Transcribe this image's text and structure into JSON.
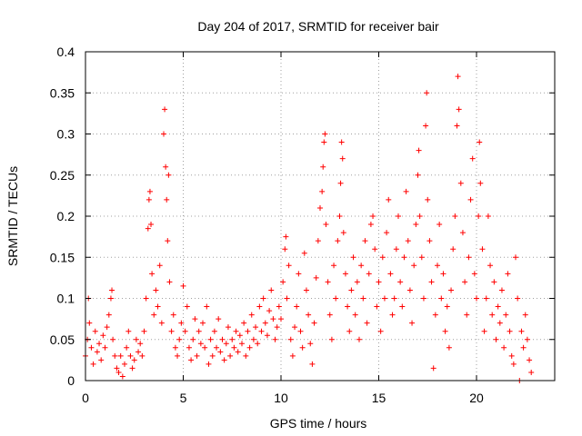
{
  "chart_data": {
    "type": "scatter",
    "title": "Day 204 of 2017, SRMTID for receiver bair",
    "xlabel": "GPS time / hours",
    "ylabel": "SRMTID / TECUs",
    "xlim": [
      0,
      24
    ],
    "ylim": [
      0,
      0.4
    ],
    "x_ticks": [
      0,
      5,
      10,
      15,
      20
    ],
    "x_tick_labels": [
      "0",
      "5",
      "10",
      "15",
      "20"
    ],
    "y_ticks": [
      0,
      0.05,
      0.1,
      0.15,
      0.2,
      0.25,
      0.3,
      0.35,
      0.4
    ],
    "y_tick_labels": [
      "0",
      "0.05",
      "0.1",
      "0.15",
      "0.2",
      "0.25",
      "0.3",
      "0.35",
      "0.4"
    ],
    "grid": true,
    "marker": "+",
    "color": "#ff0000",
    "series": [
      {
        "name": "SRMTID",
        "points": [
          [
            0.0,
            0.03
          ],
          [
            0.1,
            0.05
          ],
          [
            0.15,
            0.1
          ],
          [
            0.2,
            0.07
          ],
          [
            0.3,
            0.04
          ],
          [
            0.4,
            0.02
          ],
          [
            0.5,
            0.06
          ],
          [
            0.6,
            0.035
          ],
          [
            0.7,
            0.045
          ],
          [
            0.8,
            0.025
          ],
          [
            0.9,
            0.055
          ],
          [
            1.0,
            0.04
          ],
          [
            1.1,
            0.065
          ],
          [
            1.2,
            0.08
          ],
          [
            1.3,
            0.1
          ],
          [
            1.35,
            0.11
          ],
          [
            1.4,
            0.05
          ],
          [
            1.5,
            0.03
          ],
          [
            1.6,
            0.015
          ],
          [
            1.7,
            0.01
          ],
          [
            1.8,
            0.03
          ],
          [
            1.9,
            0.005
          ],
          [
            2.0,
            0.02
          ],
          [
            2.1,
            0.04
          ],
          [
            2.2,
            0.06
          ],
          [
            2.3,
            0.03
          ],
          [
            2.4,
            0.015
          ],
          [
            2.5,
            0.025
          ],
          [
            2.6,
            0.05
          ],
          [
            2.7,
            0.035
          ],
          [
            2.8,
            0.045
          ],
          [
            2.9,
            0.03
          ],
          [
            3.0,
            0.06
          ],
          [
            3.1,
            0.1
          ],
          [
            3.2,
            0.185
          ],
          [
            3.25,
            0.22
          ],
          [
            3.3,
            0.23
          ],
          [
            3.35,
            0.19
          ],
          [
            3.4,
            0.13
          ],
          [
            3.5,
            0.08
          ],
          [
            3.6,
            0.11
          ],
          [
            3.7,
            0.09
          ],
          [
            3.8,
            0.14
          ],
          [
            3.9,
            0.07
          ],
          [
            4.0,
            0.3
          ],
          [
            4.05,
            0.33
          ],
          [
            4.1,
            0.26
          ],
          [
            4.15,
            0.22
          ],
          [
            4.2,
            0.17
          ],
          [
            4.25,
            0.25
          ],
          [
            4.3,
            0.12
          ],
          [
            4.4,
            0.06
          ],
          [
            4.5,
            0.08
          ],
          [
            4.6,
            0.04
          ],
          [
            4.7,
            0.03
          ],
          [
            4.8,
            0.05
          ],
          [
            4.9,
            0.07
          ],
          [
            5.0,
            0.115
          ],
          [
            5.1,
            0.06
          ],
          [
            5.2,
            0.09
          ],
          [
            5.3,
            0.04
          ],
          [
            5.4,
            0.025
          ],
          [
            5.5,
            0.05
          ],
          [
            5.6,
            0.075
          ],
          [
            5.7,
            0.03
          ],
          [
            5.8,
            0.06
          ],
          [
            5.9,
            0.045
          ],
          [
            6.0,
            0.07
          ],
          [
            6.1,
            0.04
          ],
          [
            6.2,
            0.09
          ],
          [
            6.3,
            0.02
          ],
          [
            6.4,
            0.05
          ],
          [
            6.5,
            0.03
          ],
          [
            6.6,
            0.06
          ],
          [
            6.7,
            0.04
          ],
          [
            6.8,
            0.075
          ],
          [
            6.9,
            0.035
          ],
          [
            7.0,
            0.05
          ],
          [
            7.1,
            0.025
          ],
          [
            7.2,
            0.045
          ],
          [
            7.3,
            0.065
          ],
          [
            7.4,
            0.03
          ],
          [
            7.5,
            0.05
          ],
          [
            7.6,
            0.04
          ],
          [
            7.7,
            0.06
          ],
          [
            7.8,
            0.035
          ],
          [
            7.9,
            0.055
          ],
          [
            8.0,
            0.045
          ],
          [
            8.1,
            0.07
          ],
          [
            8.2,
            0.03
          ],
          [
            8.3,
            0.06
          ],
          [
            8.4,
            0.04
          ],
          [
            8.5,
            0.08
          ],
          [
            8.6,
            0.05
          ],
          [
            8.7,
            0.065
          ],
          [
            8.8,
            0.045
          ],
          [
            8.9,
            0.09
          ],
          [
            9.0,
            0.06
          ],
          [
            9.1,
            0.1
          ],
          [
            9.2,
            0.07
          ],
          [
            9.3,
            0.055
          ],
          [
            9.4,
            0.085
          ],
          [
            9.5,
            0.11
          ],
          [
            9.6,
            0.075
          ],
          [
            9.7,
            0.05
          ],
          [
            9.8,
            0.065
          ],
          [
            9.9,
            0.09
          ],
          [
            10.0,
            0.075
          ],
          [
            10.1,
            0.12
          ],
          [
            10.2,
            0.16
          ],
          [
            10.25,
            0.175
          ],
          [
            10.3,
            0.1
          ],
          [
            10.4,
            0.14
          ],
          [
            10.5,
            0.05
          ],
          [
            10.6,
            0.03
          ],
          [
            10.7,
            0.065
          ],
          [
            10.8,
            0.09
          ],
          [
            10.9,
            0.13
          ],
          [
            11.0,
            0.06
          ],
          [
            11.1,
            0.04
          ],
          [
            11.2,
            0.155
          ],
          [
            11.3,
            0.11
          ],
          [
            11.4,
            0.08
          ],
          [
            11.5,
            0.045
          ],
          [
            11.6,
            0.02
          ],
          [
            11.7,
            0.07
          ],
          [
            11.8,
            0.125
          ],
          [
            11.9,
            0.17
          ],
          [
            12.0,
            0.21
          ],
          [
            12.1,
            0.23
          ],
          [
            12.15,
            0.26
          ],
          [
            12.2,
            0.29
          ],
          [
            12.25,
            0.3
          ],
          [
            12.3,
            0.19
          ],
          [
            12.4,
            0.12
          ],
          [
            12.5,
            0.08
          ],
          [
            12.6,
            0.05
          ],
          [
            12.7,
            0.14
          ],
          [
            12.8,
            0.1
          ],
          [
            12.9,
            0.17
          ],
          [
            13.0,
            0.2
          ],
          [
            13.05,
            0.24
          ],
          [
            13.1,
            0.29
          ],
          [
            13.15,
            0.27
          ],
          [
            13.2,
            0.18
          ],
          [
            13.3,
            0.13
          ],
          [
            13.4,
            0.09
          ],
          [
            13.5,
            0.06
          ],
          [
            13.6,
            0.11
          ],
          [
            13.7,
            0.15
          ],
          [
            13.8,
            0.08
          ],
          [
            13.9,
            0.12
          ],
          [
            14.0,
            0.05
          ],
          [
            14.1,
            0.14
          ],
          [
            14.2,
            0.1
          ],
          [
            14.3,
            0.17
          ],
          [
            14.4,
            0.07
          ],
          [
            14.5,
            0.13
          ],
          [
            14.6,
            0.19
          ],
          [
            14.7,
            0.2
          ],
          [
            14.8,
            0.16
          ],
          [
            14.9,
            0.09
          ],
          [
            15.0,
            0.12
          ],
          [
            15.1,
            0.06
          ],
          [
            15.2,
            0.15
          ],
          [
            15.3,
            0.1
          ],
          [
            15.4,
            0.18
          ],
          [
            15.5,
            0.22
          ],
          [
            15.6,
            0.13
          ],
          [
            15.7,
            0.08
          ],
          [
            15.8,
            0.1
          ],
          [
            15.9,
            0.16
          ],
          [
            16.0,
            0.2
          ],
          [
            16.1,
            0.12
          ],
          [
            16.2,
            0.09
          ],
          [
            16.3,
            0.15
          ],
          [
            16.4,
            0.23
          ],
          [
            16.5,
            0.17
          ],
          [
            16.6,
            0.11
          ],
          [
            16.7,
            0.07
          ],
          [
            16.8,
            0.14
          ],
          [
            16.9,
            0.19
          ],
          [
            17.0,
            0.25
          ],
          [
            17.05,
            0.28
          ],
          [
            17.1,
            0.2
          ],
          [
            17.2,
            0.15
          ],
          [
            17.3,
            0.1
          ],
          [
            17.4,
            0.31
          ],
          [
            17.45,
            0.35
          ],
          [
            17.5,
            0.22
          ],
          [
            17.6,
            0.17
          ],
          [
            17.7,
            0.12
          ],
          [
            17.8,
            0.015
          ],
          [
            17.9,
            0.08
          ],
          [
            18.0,
            0.14
          ],
          [
            18.1,
            0.19
          ],
          [
            18.2,
            0.1
          ],
          [
            18.3,
            0.13
          ],
          [
            18.4,
            0.06
          ],
          [
            18.5,
            0.09
          ],
          [
            18.6,
            0.04
          ],
          [
            18.7,
            0.11
          ],
          [
            18.8,
            0.16
          ],
          [
            18.9,
            0.2
          ],
          [
            19.0,
            0.31
          ],
          [
            19.05,
            0.37
          ],
          [
            19.1,
            0.33
          ],
          [
            19.2,
            0.24
          ],
          [
            19.3,
            0.18
          ],
          [
            19.4,
            0.12
          ],
          [
            19.5,
            0.08
          ],
          [
            19.6,
            0.15
          ],
          [
            19.7,
            0.22
          ],
          [
            19.8,
            0.27
          ],
          [
            19.9,
            0.13
          ],
          [
            20.0,
            0.1
          ],
          [
            20.1,
            0.2
          ],
          [
            20.15,
            0.29
          ],
          [
            20.2,
            0.24
          ],
          [
            20.3,
            0.16
          ],
          [
            20.4,
            0.06
          ],
          [
            20.5,
            0.1
          ],
          [
            20.6,
            0.2
          ],
          [
            20.7,
            0.14
          ],
          [
            20.8,
            0.08
          ],
          [
            20.9,
            0.12
          ],
          [
            21.0,
            0.05
          ],
          [
            21.1,
            0.09
          ],
          [
            21.2,
            0.07
          ],
          [
            21.3,
            0.11
          ],
          [
            21.4,
            0.04
          ],
          [
            21.5,
            0.08
          ],
          [
            21.6,
            0.13
          ],
          [
            21.7,
            0.06
          ],
          [
            21.8,
            0.03
          ],
          [
            21.9,
            0.02
          ],
          [
            22.0,
            0.15
          ],
          [
            22.1,
            0.1
          ],
          [
            22.2,
            0.0
          ],
          [
            22.3,
            0.06
          ],
          [
            22.4,
            0.04
          ],
          [
            22.5,
            0.08
          ],
          [
            22.6,
            0.05
          ],
          [
            22.7,
            0.025
          ],
          [
            22.8,
            0.01
          ]
        ]
      }
    ]
  }
}
